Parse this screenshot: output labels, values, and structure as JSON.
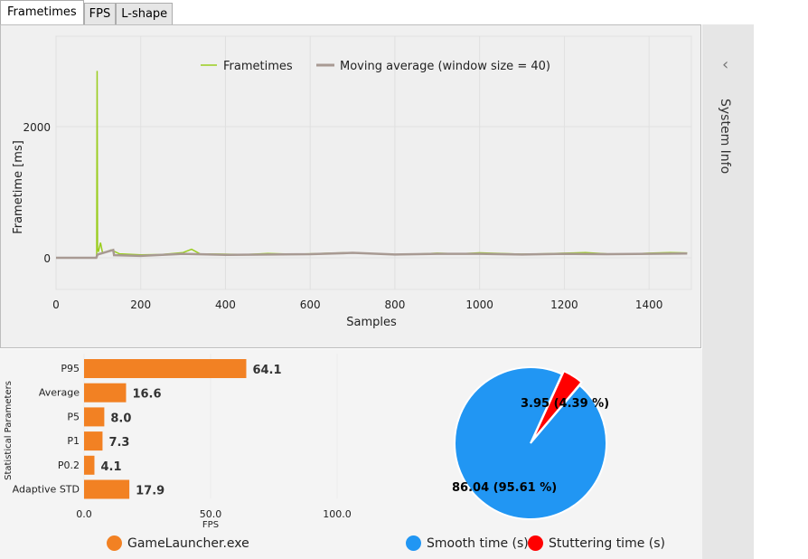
{
  "tabs": [
    {
      "label": "Frametimes",
      "active": true
    },
    {
      "label": "FPS",
      "active": false
    },
    {
      "label": "L-shape",
      "active": false
    }
  ],
  "side_panel": {
    "label": "System Info",
    "icon": "chevron-left-icon"
  },
  "chart_data": [
    {
      "type": "line",
      "xlabel": "Samples",
      "ylabel": "Frametime [ms]",
      "xlim": [
        0,
        1500
      ],
      "ylim": [
        -800,
        3380
      ],
      "xticks": [
        "0",
        "200",
        "400",
        "600",
        "800",
        "1000",
        "1200",
        "1400"
      ],
      "yticks": [
        "0",
        "2000"
      ],
      "grid": true,
      "legend": "top",
      "series": [
        {
          "name": "Frametimes",
          "color": "#9acd1e",
          "points": [
            [
              0,
              0
            ],
            [
              95,
              0
            ],
            [
              96,
              60
            ],
            [
              97,
              2850
            ],
            [
              98,
              150
            ],
            [
              100,
              90
            ],
            [
              105,
              230
            ],
            [
              110,
              70
            ],
            [
              130,
              120
            ],
            [
              150,
              60
            ],
            [
              200,
              45
            ],
            [
              250,
              50
            ],
            [
              300,
              80
            ],
            [
              320,
              130
            ],
            [
              340,
              60
            ],
            [
              400,
              55
            ],
            [
              450,
              50
            ],
            [
              500,
              65
            ],
            [
              560,
              55
            ],
            [
              600,
              60
            ],
            [
              650,
              70
            ],
            [
              700,
              80
            ],
            [
              750,
              60
            ],
            [
              800,
              50
            ],
            [
              850,
              55
            ],
            [
              900,
              70
            ],
            [
              950,
              60
            ],
            [
              1000,
              75
            ],
            [
              1050,
              65
            ],
            [
              1100,
              55
            ],
            [
              1150,
              60
            ],
            [
              1200,
              70
            ],
            [
              1250,
              80
            ],
            [
              1300,
              60
            ],
            [
              1350,
              55
            ],
            [
              1400,
              70
            ],
            [
              1450,
              80
            ],
            [
              1490,
              75
            ]
          ]
        },
        {
          "name": "Moving average (window size = 40)",
          "color": "#a89a93",
          "points": [
            [
              0,
              0
            ],
            [
              95,
              0
            ],
            [
              98,
              50
            ],
            [
              135,
              120
            ],
            [
              137,
              40
            ],
            [
              200,
              30
            ],
            [
              300,
              60
            ],
            [
              400,
              45
            ],
            [
              500,
              50
            ],
            [
              600,
              55
            ],
            [
              700,
              75
            ],
            [
              800,
              50
            ],
            [
              900,
              60
            ],
            [
              1000,
              60
            ],
            [
              1100,
              50
            ],
            [
              1200,
              60
            ],
            [
              1300,
              55
            ],
            [
              1400,
              60
            ],
            [
              1490,
              65
            ]
          ]
        }
      ]
    },
    {
      "type": "bar",
      "orientation": "horizontal",
      "ylabel": "Statistical Parameters",
      "xlabel": "FPS",
      "xlim": [
        0,
        100
      ],
      "xticks": [
        "0.0",
        "50.0",
        "100.0"
      ],
      "categories": [
        "P95",
        "Average",
        "P5",
        "P1",
        "P0.2",
        "Adaptive STD"
      ],
      "values": [
        64.1,
        16.6,
        8.0,
        7.3,
        4.1,
        17.9
      ],
      "labels": [
        "64.1",
        "16.6",
        "8.0",
        "7.3",
        "4.1",
        "17.9"
      ],
      "color": "#f28123",
      "legend": "GameLauncher.exe"
    },
    {
      "type": "pie",
      "slices": [
        {
          "name": "Smooth time (s)",
          "value": 86.04,
          "label": "86.04 (95.61 %)",
          "color": "#2196f3"
        },
        {
          "name": "Stuttering time (s)",
          "value": 3.95,
          "label": "3.95 (4.39 %)",
          "color": "#ff0000"
        }
      ],
      "legend": "bottom"
    }
  ]
}
